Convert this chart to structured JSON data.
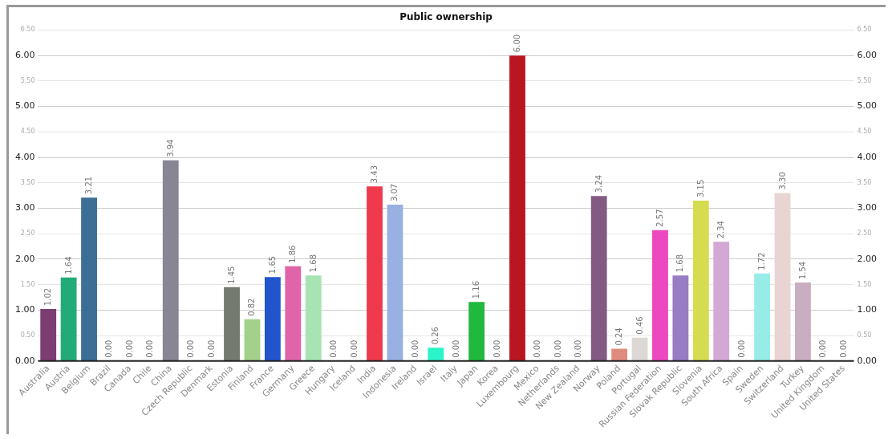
{
  "chart_data": {
    "type": "bar",
    "title": "Public ownership",
    "categories": [
      "Australia",
      "Austria",
      "Belgium",
      "Brazil",
      "Canada",
      "Chile",
      "China",
      "Czech Republic",
      "Denmark",
      "Estonia",
      "Finland",
      "France",
      "Germany",
      "Greece",
      "Hungary",
      "Iceland",
      "India",
      "Indonesia",
      "Ireland",
      "Israel",
      "Italy",
      "Japan",
      "Korea",
      "Luxembourg",
      "Mexico",
      "Netherlands",
      "New Zealand",
      "Norway",
      "Poland",
      "Portugal",
      "Russian Federation",
      "Slovak Republic",
      "Slovenia",
      "South Africa",
      "Spain",
      "Sweden",
      "Switzerland",
      "Turkey",
      "United Kingdom",
      "United States"
    ],
    "values": [
      1.02,
      1.64,
      3.21,
      0,
      0,
      0,
      3.94,
      0,
      0,
      1.45,
      0.82,
      1.65,
      1.86,
      1.68,
      0,
      0,
      3.43,
      3.07,
      0,
      0.26,
      0,
      1.16,
      0,
      6.0,
      0,
      0,
      0,
      3.24,
      0.24,
      0.46,
      2.57,
      1.68,
      3.15,
      2.34,
      0,
      1.72,
      3.3,
      1.54,
      0,
      0
    ],
    "value_labels": [
      "1.02",
      "1.64",
      "3.21",
      "0.00",
      "0.00",
      "0.00",
      "3.94",
      "0.00",
      "0.00",
      "1.45",
      "0.82",
      "1.65",
      "1.86",
      "1.68",
      "0.00",
      "0.00",
      "3.43",
      "3.07",
      "0.00",
      "0.26",
      "0.00",
      "1.16",
      "0.00",
      "6.00",
      "0.00",
      "0.00",
      "0.00",
      "3.24",
      "0.24",
      "0.46",
      "2.57",
      "1.68",
      "3.15",
      "2.34",
      "0.00",
      "1.72",
      "3.30",
      "1.54",
      "0.00",
      "0.00"
    ],
    "colors": [
      "#7b3d72",
      "#22aa78",
      "#3d6e96",
      "#cccccc",
      "#cccccc",
      "#cccccc",
      "#888594",
      "#cccccc",
      "#cccccc",
      "#747a6e",
      "#a3d18b",
      "#2255cc",
      "#df64a8",
      "#a6e4b4",
      "#cccccc",
      "#cccccc",
      "#ef3a4e",
      "#98b0e2",
      "#cccccc",
      "#2af5c8",
      "#cccccc",
      "#20b83e",
      "#cccccc",
      "#b81622",
      "#cccccc",
      "#cccccc",
      "#cccccc",
      "#825a82",
      "#e08c7c",
      "#dcd8d6",
      "#ec48c0",
      "#987cc4",
      "#d6dc50",
      "#d4a8d4",
      "#cccccc",
      "#98ece8",
      "#e8d4d2",
      "#c8aec0",
      "#cccccc",
      "#cccccc"
    ],
    "ylim": [
      0,
      6.5
    ],
    "yticks": [
      {
        "value": 0,
        "label": "0.00"
      },
      {
        "value": 0.5,
        "label": "0.50"
      },
      {
        "value": 1,
        "label": "1.00"
      },
      {
        "value": 1.5,
        "label": "1.50"
      },
      {
        "value": 2,
        "label": "2.00"
      },
      {
        "value": 2.5,
        "label": "2.50"
      },
      {
        "value": 3,
        "label": "3.00"
      },
      {
        "value": 3.5,
        "label": "3.50"
      },
      {
        "value": 4,
        "label": "4.00"
      },
      {
        "value": 4.5,
        "label": "4.50"
      },
      {
        "value": 5,
        "label": "5.00"
      },
      {
        "value": 5.5,
        "label": "5.50"
      },
      {
        "value": 6,
        "label": "6.00"
      },
      {
        "value": 6.5,
        "label": "6.50"
      }
    ],
    "y2lim": [
      0,
      6.5
    ],
    "y2ticks": [
      {
        "value": 0,
        "label": "0.00"
      },
      {
        "value": 0.5,
        "label": "0.50"
      },
      {
        "value": 1,
        "label": "1.00"
      },
      {
        "value": 1.5,
        "label": "1.50"
      },
      {
        "value": 2,
        "label": "2.00"
      },
      {
        "value": 2.5,
        "label": "2.50"
      },
      {
        "value": 3,
        "label": "3.00"
      },
      {
        "value": 3.5,
        "label": "3.50"
      },
      {
        "value": 4,
        "label": "4.00"
      },
      {
        "value": 4.5,
        "label": "4.50"
      },
      {
        "value": 5,
        "label": "5.00"
      },
      {
        "value": 5.5,
        "label": "5.50"
      },
      {
        "value": 6,
        "label": "6.00"
      },
      {
        "value": 6.5,
        "label": "6.50"
      }
    ],
    "grid": "y"
  }
}
